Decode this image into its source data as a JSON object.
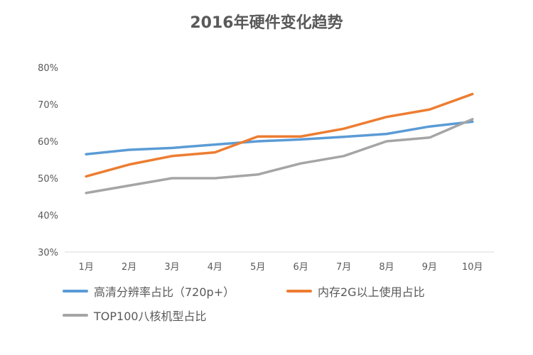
{
  "chart_data": {
    "type": "line",
    "title": "2016年硬件变化趋势",
    "categories": [
      "1月",
      "2月",
      "3月",
      "4月",
      "5月",
      "6月",
      "7月",
      "8月",
      "9月",
      "10月"
    ],
    "ylim": [
      30,
      80
    ],
    "y_ticks": [
      "30%",
      "40%",
      "50%",
      "60%",
      "70%",
      "80%"
    ],
    "y_tick_values": [
      30,
      40,
      50,
      60,
      70,
      80
    ],
    "grid": false,
    "legend_position": "bottom",
    "series": [
      {
        "name": "高清分辨率占比（720p+）",
        "color": "#5B9BD5",
        "values": [
          56.5,
          57.7,
          58.2,
          59.1,
          60.0,
          60.5,
          61.2,
          62.0,
          64.0,
          65.3
        ]
      },
      {
        "name": "内存2G以上使用占比",
        "color": "#ED7D31",
        "values": [
          50.5,
          53.7,
          56.0,
          57.0,
          61.3,
          61.3,
          63.4,
          66.6,
          68.6,
          72.8
        ]
      },
      {
        "name": "TOP100八核机型占比",
        "color": "#A5A5A5",
        "values": [
          46.0,
          48.0,
          50.0,
          50.0,
          51.0,
          54.0,
          56.0,
          60.0,
          61.0,
          66.0
        ]
      }
    ]
  }
}
